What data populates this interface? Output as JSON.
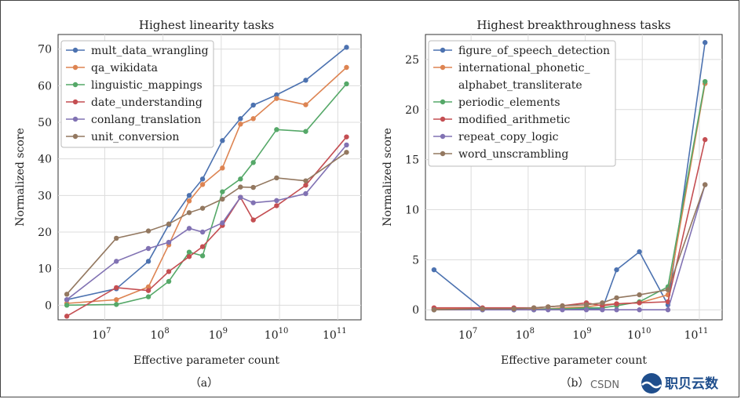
{
  "chart_data": [
    {
      "type": "line",
      "title": "Highest linearity tasks",
      "xlabel": "Effective parameter count",
      "ylabel": "Normalized score",
      "caption": "（a）",
      "x_scale": "log",
      "xlim_log10": [
        6.2,
        11.4
      ],
      "ylim": [
        -4,
        74
      ],
      "xticks": [
        {
          "exp": 7,
          "base": "10",
          "sup": "7"
        },
        {
          "exp": 8,
          "base": "10",
          "sup": "8"
        },
        {
          "exp": 9,
          "base": "10",
          "sup": "9"
        },
        {
          "exp": 10,
          "base": "10",
          "sup": "10"
        },
        {
          "exp": 11,
          "base": "10",
          "sup": "11"
        }
      ],
      "yticks": [
        0,
        10,
        20,
        30,
        40,
        50,
        60,
        70
      ],
      "legend_position": "top-left",
      "series": [
        {
          "name": "mult_data_wrangling",
          "color": "#4c72b0",
          "points": [
            [
              6.35,
              1.5
            ],
            [
              7.2,
              4.5
            ],
            [
              7.75,
              12
            ],
            [
              8.1,
              22
            ],
            [
              8.45,
              30
            ],
            [
              8.68,
              34.5
            ],
            [
              9.02,
              45
            ],
            [
              9.33,
              51
            ],
            [
              9.55,
              54.7
            ],
            [
              9.95,
              57.5
            ],
            [
              10.45,
              61.5
            ],
            [
              11.15,
              70.5
            ]
          ]
        },
        {
          "name": "qa_wikidata",
          "color": "#dd8452",
          "points": [
            [
              6.35,
              0.5
            ],
            [
              7.2,
              1.5
            ],
            [
              7.75,
              5
            ],
            [
              8.1,
              16.5
            ],
            [
              8.45,
              28.5
            ],
            [
              8.68,
              33
            ],
            [
              9.02,
              37.5
            ],
            [
              9.33,
              49.5
            ],
            [
              9.55,
              51
            ],
            [
              9.95,
              56.5
            ],
            [
              10.45,
              54.8
            ],
            [
              11.15,
              65
            ]
          ]
        },
        {
          "name": "linguistic_mappings",
          "color": "#55a868",
          "points": [
            [
              6.35,
              0
            ],
            [
              7.2,
              0.2
            ],
            [
              7.75,
              2.3
            ],
            [
              8.1,
              6.5
            ],
            [
              8.45,
              14.5
            ],
            [
              8.68,
              13.5
            ],
            [
              9.02,
              31
            ],
            [
              9.33,
              34.5
            ],
            [
              9.55,
              39
            ],
            [
              9.95,
              48
            ],
            [
              10.45,
              47.5
            ],
            [
              11.15,
              60.5
            ]
          ]
        },
        {
          "name": "date_understanding",
          "color": "#c44e52",
          "points": [
            [
              6.35,
              -3
            ],
            [
              7.2,
              4.8
            ],
            [
              7.75,
              4
            ],
            [
              8.1,
              9.2
            ],
            [
              8.45,
              13.3
            ],
            [
              8.68,
              16
            ],
            [
              9.02,
              21.8
            ],
            [
              9.33,
              29.5
            ],
            [
              9.55,
              23.3
            ],
            [
              9.95,
              27.2
            ],
            [
              10.45,
              32.8
            ],
            [
              11.15,
              46
            ]
          ]
        },
        {
          "name": "conlang_translation",
          "color": "#8172b3",
          "points": [
            [
              6.35,
              1.5
            ],
            [
              7.2,
              12
            ],
            [
              7.75,
              15.5
            ],
            [
              8.1,
              17.2
            ],
            [
              8.45,
              21
            ],
            [
              8.68,
              20
            ],
            [
              9.02,
              22.5
            ],
            [
              9.33,
              29.5
            ],
            [
              9.55,
              28
            ],
            [
              9.95,
              28.6
            ],
            [
              10.45,
              30.5
            ],
            [
              11.15,
              43.8
            ]
          ]
        },
        {
          "name": "unit_conversion",
          "color": "#937860",
          "points": [
            [
              6.35,
              3
            ],
            [
              7.2,
              18.3
            ],
            [
              7.75,
              20.3
            ],
            [
              8.1,
              22.2
            ],
            [
              8.45,
              25.3
            ],
            [
              8.68,
              26.5
            ],
            [
              9.02,
              29
            ],
            [
              9.33,
              32.3
            ],
            [
              9.55,
              32.2
            ],
            [
              9.95,
              34.8
            ],
            [
              10.45,
              34
            ],
            [
              11.15,
              41.8
            ]
          ]
        }
      ]
    },
    {
      "type": "line",
      "title": "Highest breakthroughness tasks",
      "xlabel": "Effective parameter count",
      "ylabel": "Normalized score",
      "caption": "（b）",
      "x_scale": "log",
      "xlim_log10": [
        6.2,
        11.4
      ],
      "ylim": [
        -1,
        27.5
      ],
      "xticks": [
        {
          "exp": 7,
          "base": "10",
          "sup": "7"
        },
        {
          "exp": 8,
          "base": "10",
          "sup": "8"
        },
        {
          "exp": 9,
          "base": "10",
          "sup": "9"
        },
        {
          "exp": 10,
          "base": "10",
          "sup": "10"
        },
        {
          "exp": 11,
          "base": "10",
          "sup": "11"
        }
      ],
      "yticks": [
        0,
        5,
        10,
        15,
        20,
        25
      ],
      "legend_position": "top-left",
      "series": [
        {
          "name": "figure_of_speech_detection",
          "color": "#4c72b0",
          "points": [
            [
              6.35,
              4
            ],
            [
              7.2,
              0.1
            ],
            [
              7.75,
              0.1
            ],
            [
              8.1,
              0.1
            ],
            [
              8.35,
              0.1
            ],
            [
              8.6,
              0.1
            ],
            [
              9.02,
              0.1
            ],
            [
              9.3,
              0.1
            ],
            [
              9.55,
              4
            ],
            [
              9.95,
              5.8
            ],
            [
              10.45,
              0.5
            ],
            [
              11.1,
              26.7
            ]
          ]
        },
        {
          "name": "international_phonetic_\nalphabet_transliterate",
          "color": "#dd8452",
          "points": [
            [
              6.35,
              0.1
            ],
            [
              7.2,
              0.1
            ],
            [
              7.75,
              0.1
            ],
            [
              8.1,
              0.1
            ],
            [
              8.35,
              0.1
            ],
            [
              8.6,
              0.2
            ],
            [
              9.02,
              0.3
            ],
            [
              9.3,
              0.5
            ],
            [
              9.55,
              0.6
            ],
            [
              9.95,
              0.7
            ],
            [
              10.45,
              1.5
            ],
            [
              11.1,
              22.6
            ]
          ]
        },
        {
          "name": "periodic_elements",
          "color": "#55a868",
          "points": [
            [
              6.35,
              0
            ],
            [
              7.2,
              0
            ],
            [
              7.75,
              0
            ],
            [
              8.1,
              0
            ],
            [
              8.35,
              0.1
            ],
            [
              8.6,
              0.1
            ],
            [
              9.02,
              0.2
            ],
            [
              9.3,
              0.2
            ],
            [
              9.55,
              0.4
            ],
            [
              9.95,
              0.8
            ],
            [
              10.45,
              2.3
            ],
            [
              11.1,
              22.8
            ]
          ]
        },
        {
          "name": "modified_arithmetic",
          "color": "#c44e52",
          "points": [
            [
              6.35,
              0.2
            ],
            [
              7.2,
              0.2
            ],
            [
              7.75,
              0.2
            ],
            [
              8.1,
              0.2
            ],
            [
              8.35,
              0.3
            ],
            [
              8.6,
              0.4
            ],
            [
              9.02,
              0.7
            ],
            [
              9.3,
              0.4
            ],
            [
              9.55,
              0.6
            ],
            [
              9.95,
              0.7
            ],
            [
              10.45,
              0.8
            ],
            [
              11.1,
              17
            ]
          ]
        },
        {
          "name": "repeat_copy_logic",
          "color": "#8172b3",
          "points": [
            [
              6.35,
              0
            ],
            [
              7.2,
              0
            ],
            [
              7.75,
              0
            ],
            [
              8.1,
              0
            ],
            [
              8.35,
              0
            ],
            [
              8.6,
              0
            ],
            [
              9.02,
              0
            ],
            [
              9.3,
              0
            ],
            [
              9.55,
              0
            ],
            [
              9.95,
              0
            ],
            [
              10.45,
              0
            ],
            [
              11.1,
              12.5
            ]
          ]
        },
        {
          "name": "word_unscrambling",
          "color": "#937860",
          "points": [
            [
              6.35,
              0
            ],
            [
              7.2,
              0.1
            ],
            [
              7.75,
              0.1
            ],
            [
              8.1,
              0.2
            ],
            [
              8.35,
              0.3
            ],
            [
              8.6,
              0.4
            ],
            [
              9.02,
              0.5
            ],
            [
              9.3,
              0.7
            ],
            [
              9.55,
              1.2
            ],
            [
              9.95,
              1.5
            ],
            [
              10.45,
              2
            ],
            [
              11.1,
              12.5
            ]
          ]
        }
      ]
    }
  ],
  "watermark": {
    "csdn_text": "CSDN",
    "brand_text": "职贝云数",
    "subtext": "CSDN @职贝云数"
  }
}
